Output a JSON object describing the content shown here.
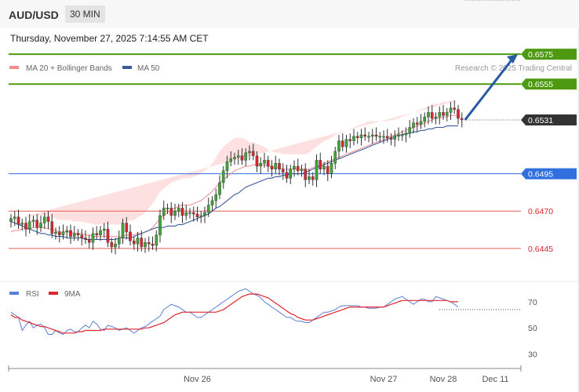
{
  "header": {
    "symbol": "AUD/USD",
    "timeframe": "30 MIN",
    "timestamp": "Thursday, November 27, 2025 7:14:55 AM CET"
  },
  "legend": {
    "ma20": "MA 20 + Bollinger Bands",
    "ma50": "MA 50",
    "credit": "Research © 2025 Trading Central",
    "rsi": "RSI",
    "rsi_ma": "9MA"
  },
  "colors": {
    "bull": "#3fa535",
    "bear": "#d9262e",
    "resistance": "#4d9a10",
    "support": "#e45a5a",
    "pivot": "#2f6fde",
    "ma20": "#f08c8c",
    "ma50": "#3a5a9a",
    "band": "#fde0e0",
    "rsi": "#5a7fd6",
    "rsi_ma": "#e0262e",
    "arrow": "#2a5aa6"
  },
  "chart_data": [
    {
      "type": "candlestick",
      "title": "AUD/USD",
      "ylim": [
        0.6425,
        0.6585
      ],
      "levels": [
        {
          "value": 0.6575,
          "label": "0.6575",
          "kind": "resistance"
        },
        {
          "value": 0.6555,
          "label": "0.6555",
          "kind": "resistance"
        },
        {
          "value": 0.6531,
          "label": "0.6531",
          "kind": "last"
        },
        {
          "value": 0.6495,
          "label": "0.6495",
          "kind": "pivot"
        },
        {
          "value": 0.647,
          "label": "0.6470",
          "kind": "support"
        },
        {
          "value": 0.6445,
          "label": "0.6445",
          "kind": "support"
        }
      ],
      "x_labels": [
        {
          "index": 50,
          "label": "Nov 26"
        },
        {
          "index": 100,
          "label": "Nov 27"
        },
        {
          "index": 116,
          "label": "Nov 28"
        },
        {
          "index": 130,
          "label": "Dec 11"
        }
      ],
      "close": [
        0.6465,
        0.6466,
        0.6461,
        0.6462,
        0.6458,
        0.6463,
        0.6464,
        0.6459,
        0.6462,
        0.6466,
        0.6463,
        0.6455,
        0.6456,
        0.6454,
        0.6456,
        0.6457,
        0.6453,
        0.6455,
        0.6454,
        0.6452,
        0.6451,
        0.6449,
        0.6455,
        0.6454,
        0.6457,
        0.6458,
        0.6449,
        0.6446,
        0.6448,
        0.6452,
        0.6462,
        0.6456,
        0.645,
        0.6448,
        0.6452,
        0.6446,
        0.6449,
        0.6448,
        0.6447,
        0.6454,
        0.6467,
        0.6472,
        0.6472,
        0.6467,
        0.647,
        0.6472,
        0.6467,
        0.6469,
        0.6469,
        0.6468,
        0.6466,
        0.6467,
        0.6469,
        0.6474,
        0.6477,
        0.6481,
        0.6489,
        0.6497,
        0.6503,
        0.6505,
        0.6506,
        0.6507,
        0.6504,
        0.6509,
        0.651,
        0.6507,
        0.65,
        0.6502,
        0.6504,
        0.65,
        0.6498,
        0.6502,
        0.6498,
        0.6496,
        0.6492,
        0.6498,
        0.65,
        0.6497,
        0.6498,
        0.6491,
        0.6493,
        0.6491,
        0.6504,
        0.6498,
        0.65,
        0.6495,
        0.6502,
        0.651,
        0.6517,
        0.6513,
        0.6518,
        0.6517,
        0.652,
        0.6519,
        0.6521,
        0.652,
        0.652,
        0.6521,
        0.652,
        0.652,
        0.652,
        0.6519,
        0.6518,
        0.652,
        0.6521,
        0.6521,
        0.6522,
        0.6526,
        0.6529,
        0.6528,
        0.653,
        0.6533,
        0.6536,
        0.6532,
        0.6533,
        0.6536,
        0.6534,
        0.6536,
        0.6539,
        0.6538,
        0.6532,
        0.6531
      ],
      "ma20": [
        0.6456,
        0.6457,
        0.6457,
        0.6458,
        0.6458,
        0.6458,
        0.6459,
        0.6459,
        0.6459,
        0.6459,
        0.6458,
        0.6458,
        0.6457,
        0.6456,
        0.6456,
        0.6456,
        0.6456,
        0.6455,
        0.6455,
        0.6455,
        0.6454,
        0.6454,
        0.6453,
        0.6453,
        0.6453,
        0.6453,
        0.6453,
        0.6453,
        0.6453,
        0.6453,
        0.6453,
        0.6454,
        0.6454,
        0.6454,
        0.6455,
        0.6455,
        0.6456,
        0.6457,
        0.6459,
        0.6462,
        0.6465,
        0.6467,
        0.6469,
        0.6471,
        0.6472,
        0.6473,
        0.6474,
        0.6474,
        0.6474,
        0.6475,
        0.6476,
        0.6477,
        0.6479,
        0.6481,
        0.6483,
        0.6486,
        0.6489,
        0.6491,
        0.6493,
        0.6495,
        0.6497,
        0.6498,
        0.6499,
        0.65,
        0.65,
        0.6501,
        0.6501,
        0.6501,
        0.6501,
        0.65,
        0.65,
        0.6499,
        0.6499,
        0.6498,
        0.6498,
        0.6498,
        0.6498,
        0.6498,
        0.6498,
        0.6498,
        0.6498,
        0.6499,
        0.65,
        0.6501,
        0.6502,
        0.6503,
        0.6504,
        0.6505,
        0.6506,
        0.6507,
        0.6508,
        0.6509,
        0.651,
        0.6511,
        0.6512,
        0.6513,
        0.6514,
        0.6515,
        0.6516,
        0.6517,
        0.6518,
        0.6519,
        0.652,
        0.6521,
        0.6522,
        0.6523,
        0.6524,
        0.6525,
        0.6526,
        0.6527,
        0.6528,
        0.6529,
        0.653,
        0.6531,
        0.6532,
        0.6532,
        0.6533,
        0.6533,
        0.6534,
        0.6534,
        0.6534
      ],
      "ma50": [
        0.6463,
        0.6462,
        0.6461,
        0.646,
        0.6459,
        0.6458,
        0.6457,
        0.6456,
        0.6455,
        0.6455,
        0.6454,
        0.6454,
        0.6453,
        0.6453,
        0.6453,
        0.6452,
        0.6452,
        0.6452,
        0.6452,
        0.6452,
        0.6451,
        0.6451,
        0.6451,
        0.6451,
        0.6451,
        0.6451,
        0.6451,
        0.6451,
        0.6451,
        0.6452,
        0.6452,
        0.6452,
        0.6452,
        0.6453,
        0.6454,
        0.6455,
        0.6456,
        0.6457,
        0.6458,
        0.6459,
        0.6459,
        0.6459,
        0.646,
        0.646,
        0.646,
        0.6461,
        0.6461,
        0.6462,
        0.6463,
        0.6464,
        0.6465,
        0.6466,
        0.6467,
        0.6468,
        0.647,
        0.6472,
        0.6473,
        0.6475,
        0.6477,
        0.6479,
        0.6481,
        0.6482,
        0.6484,
        0.6486,
        0.6487,
        0.6488,
        0.6489,
        0.649,
        0.6491,
        0.6492,
        0.6492,
        0.6493,
        0.6493,
        0.6494,
        0.6494,
        0.6495,
        0.6495,
        0.6495,
        0.6495,
        0.6496,
        0.6497,
        0.6498,
        0.6499,
        0.65,
        0.6501,
        0.6502,
        0.6503,
        0.6504,
        0.6505,
        0.6506,
        0.6507,
        0.6508,
        0.6509,
        0.651,
        0.6511,
        0.6512,
        0.6513,
        0.6514,
        0.6515,
        0.6516,
        0.6517,
        0.6518,
        0.6519,
        0.652,
        0.6521,
        0.6521,
        0.6522,
        0.6522,
        0.6523,
        0.6523,
        0.6524,
        0.6524,
        0.6525,
        0.6525,
        0.6526,
        0.6526,
        0.6526,
        0.6527,
        0.6527,
        0.6527,
        0.6527
      ],
      "band_width": [
        0.0008,
        0.0008,
        0.0008,
        0.0008,
        0.0008,
        0.0008,
        0.0008,
        0.0008,
        0.0008,
        0.0008,
        0.0008,
        0.0008,
        0.0008,
        0.0008,
        0.0008,
        0.0008,
        0.0008,
        0.0008,
        0.0008,
        0.0008,
        0.0008,
        0.0008,
        0.0008,
        0.0008,
        0.0008,
        0.0008,
        0.0008,
        0.0008,
        0.0008,
        0.0008,
        0.0009,
        0.0009,
        0.001,
        0.001,
        0.0011,
        0.0012,
        0.0013,
        0.0015,
        0.0016,
        0.0017,
        0.0018,
        0.0018,
        0.0018,
        0.0018,
        0.0018,
        0.0018,
        0.0018,
        0.0018,
        0.0018,
        0.0018,
        0.0018,
        0.0018,
        0.0018,
        0.0018,
        0.0019,
        0.002,
        0.0021,
        0.0022,
        0.0022,
        0.0022,
        0.0022,
        0.0021,
        0.002,
        0.0018,
        0.0016,
        0.0015,
        0.0014,
        0.0013,
        0.0012,
        0.0011,
        0.001,
        0.001,
        0.001,
        0.001,
        0.001,
        0.001,
        0.001,
        0.001,
        0.001,
        0.001,
        0.0011,
        0.0012,
        0.0013,
        0.0014,
        0.0015,
        0.0015,
        0.0015,
        0.0016,
        0.0016,
        0.0016,
        0.0016,
        0.0016,
        0.0016,
        0.0016,
        0.0016,
        0.0016,
        0.0016,
        0.0015,
        0.0014,
        0.0013,
        0.0012,
        0.0011,
        0.0011,
        0.001,
        0.001,
        0.001,
        0.001,
        0.001,
        0.001,
        0.001,
        0.001,
        0.001,
        0.001,
        0.001,
        0.001,
        0.001,
        0.001,
        0.001,
        0.001,
        0.001,
        0.001
      ],
      "forecast": {
        "from": 0.6531,
        "to": 0.6575
      }
    },
    {
      "type": "line",
      "title": "RSI",
      "ylim": [
        20,
        85
      ],
      "yticks": [
        30,
        50,
        70
      ],
      "series": [
        {
          "name": "RSI",
          "values": [
            62,
            60,
            58,
            48,
            52,
            55,
            50,
            52,
            53,
            50,
            45,
            45,
            48,
            46,
            45,
            48,
            49,
            47,
            47,
            50,
            52,
            50,
            55,
            53,
            49,
            48,
            52,
            51,
            50,
            48,
            49,
            50,
            48,
            46,
            48,
            50,
            51,
            53,
            55,
            57,
            59,
            64,
            66,
            68,
            67,
            66,
            64,
            62,
            62,
            60,
            58,
            58,
            60,
            62,
            64,
            66,
            68,
            70,
            72,
            74,
            76,
            78,
            79,
            80,
            78,
            76,
            75,
            73,
            70,
            68,
            66,
            64,
            62,
            60,
            58,
            58,
            56,
            55,
            55,
            54,
            54,
            56,
            58,
            60,
            62,
            62,
            63,
            64,
            66,
            67,
            67,
            67,
            67,
            67,
            66,
            66,
            65,
            65,
            65,
            66,
            66,
            68,
            70,
            72,
            73,
            74,
            72,
            70,
            68,
            70,
            72,
            72,
            70,
            70,
            74,
            73,
            72,
            71,
            70,
            68,
            66
          ]
        },
        {
          "name": "9MA",
          "values": [
            60,
            58,
            58,
            56,
            55,
            54,
            53,
            52,
            51,
            51,
            50,
            49,
            48,
            47,
            46,
            46,
            46,
            46,
            47,
            47,
            48,
            48,
            48,
            48,
            48,
            49,
            49,
            49,
            49,
            49,
            49,
            49,
            49,
            49,
            49,
            49,
            50,
            50,
            51,
            52,
            53,
            54,
            56,
            58,
            60,
            61,
            62,
            62,
            62,
            62,
            62,
            62,
            62,
            62,
            62,
            62,
            63,
            64,
            66,
            68,
            70,
            72,
            74,
            75,
            76,
            76,
            76,
            75,
            74,
            73,
            71,
            69,
            67,
            65,
            63,
            61,
            60,
            58,
            57,
            56,
            56,
            56,
            57,
            58,
            59,
            60,
            61,
            62,
            63,
            64,
            65,
            66,
            66,
            66,
            66,
            66,
            66,
            66,
            66,
            66,
            66,
            67,
            68,
            69,
            70,
            71,
            71,
            71,
            71,
            71,
            71,
            71,
            71,
            71,
            71,
            71,
            71,
            71,
            70,
            70,
            70
          ]
        }
      ]
    }
  ]
}
